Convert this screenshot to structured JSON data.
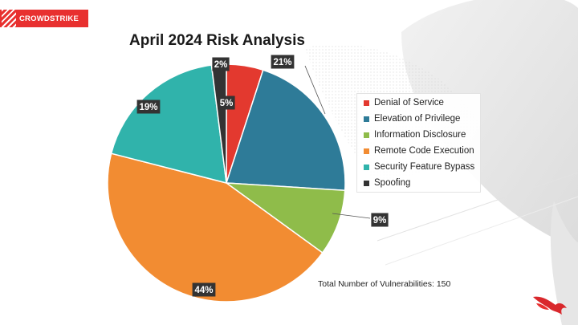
{
  "brand": {
    "logo_text": "CROWDSTRIKE",
    "accent": "#e8302f"
  },
  "chart_data": {
    "type": "pie",
    "title": "April 2024 Risk Analysis",
    "categories": [
      "Denial of Service",
      "Elevation of Privilege",
      "Information Disclosure",
      "Remote Code Execution",
      "Security Feature Bypass",
      "Spoofing"
    ],
    "values": [
      5,
      21,
      9,
      44,
      19,
      2
    ],
    "data_labels": [
      "5%",
      "21%",
      "9%",
      "44%",
      "19%",
      "2%"
    ],
    "colors": [
      "#e3392f",
      "#2e7b98",
      "#8fbc4a",
      "#f28c32",
      "#30b3ab",
      "#333333"
    ],
    "legend_position": "right"
  },
  "footer": {
    "total_text": "Total Number of Vulnerabilities: 150"
  }
}
